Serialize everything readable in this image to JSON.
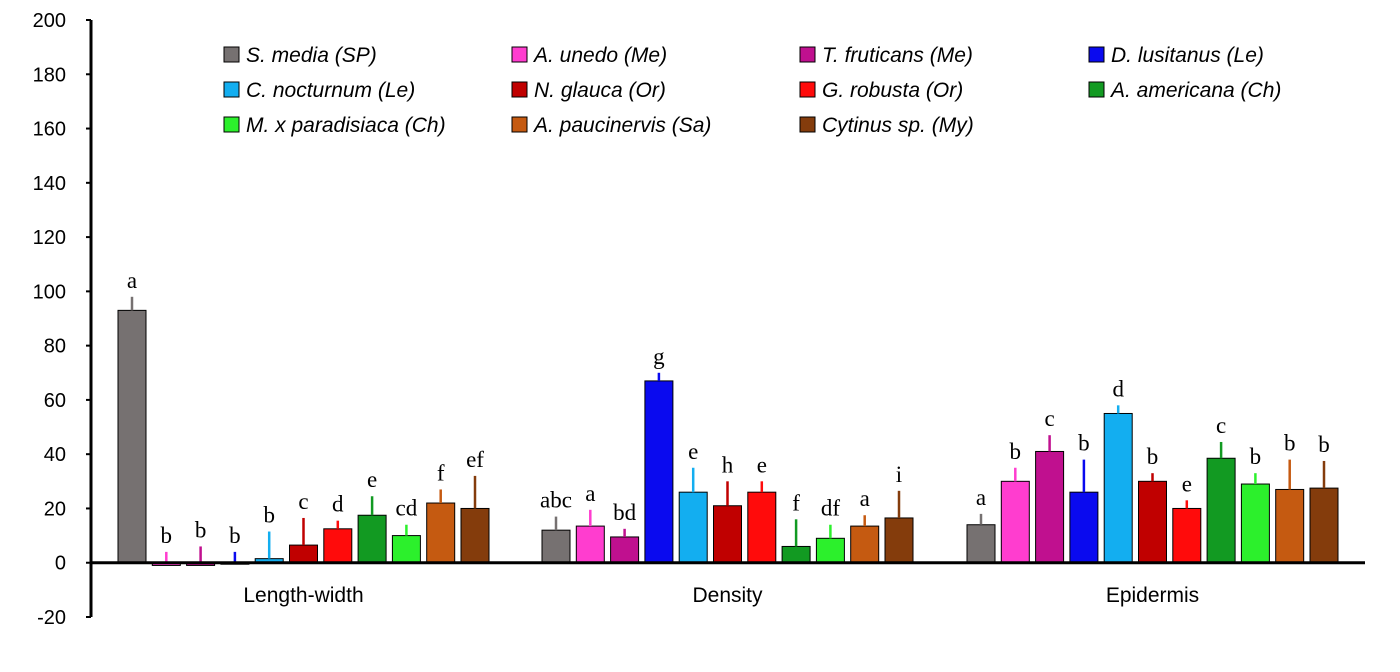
{
  "chart_data": {
    "type": "bar",
    "title": "",
    "xlabel": "",
    "ylabel": "",
    "ylim": [
      -20,
      200
    ],
    "yticks": [
      -20,
      0,
      20,
      40,
      60,
      80,
      100,
      120,
      140,
      160,
      180,
      200
    ],
    "grid": false,
    "legend_position": "top",
    "categories": [
      "Length-width",
      "Density",
      "Epidermis"
    ],
    "series": [
      {
        "name": "S. media (SP)",
        "color": "#767171",
        "values": [
          93,
          12,
          14
        ],
        "errors": [
          5,
          5,
          4
        ],
        "letters": [
          "a",
          "abc",
          "a"
        ]
      },
      {
        "name": "A. unedo (Me)",
        "color": "#ff3dcf",
        "values": [
          -1,
          13.5,
          30
        ],
        "errors": [
          4,
          6,
          5
        ],
        "letters": [
          "b",
          "a",
          "b"
        ]
      },
      {
        "name": "T. fruticans (Me)",
        "color": "#c0108f",
        "values": [
          -1,
          9.5,
          41
        ],
        "errors": [
          6,
          3,
          6
        ],
        "letters": [
          "b",
          "bd",
          "c"
        ]
      },
      {
        "name": "D. lusitanus (Le)",
        "color": "#0a0aef",
        "values": [
          0,
          67,
          26
        ],
        "errors": [
          4,
          3,
          12
        ],
        "letters": [
          "b",
          "g",
          "b"
        ]
      },
      {
        "name": "C. nocturnum (Le)",
        "color": "#13aef0",
        "values": [
          1.5,
          26,
          55
        ],
        "errors": [
          10,
          9,
          3
        ],
        "letters": [
          "b",
          "e",
          "d"
        ]
      },
      {
        "name": "N. glauca (Or)",
        "color": "#c00000",
        "values": [
          6.5,
          21,
          30
        ],
        "errors": [
          10,
          9,
          3
        ],
        "letters": [
          "c",
          "h",
          "b"
        ]
      },
      {
        "name": "G. robusta (Or)",
        "color": "#ff0b0b",
        "values": [
          12.5,
          26,
          20
        ],
        "errors": [
          3,
          4,
          3
        ],
        "letters": [
          "d",
          "e",
          "e"
        ]
      },
      {
        "name": "A. americana (Ch)",
        "color": "#129a22",
        "values": [
          17.5,
          6,
          38.5
        ],
        "errors": [
          7,
          10,
          6
        ],
        "letters": [
          "e",
          "f",
          "c"
        ]
      },
      {
        "name": "M. x paradisiaca (Ch)",
        "color": "#2cf02c",
        "values": [
          10,
          9,
          29
        ],
        "errors": [
          4,
          5,
          4
        ],
        "letters": [
          "cd",
          "df",
          "b"
        ]
      },
      {
        "name": "A. paucinervis (Sa)",
        "color": "#c55a11",
        "values": [
          22,
          13.5,
          27
        ],
        "errors": [
          5,
          4,
          11
        ],
        "letters": [
          "f",
          "a",
          "b"
        ]
      },
      {
        "name": "Cytinus sp. (My)",
        "color": "#843c0c",
        "values": [
          20,
          16.5,
          27.5
        ],
        "errors": [
          12,
          10,
          10
        ],
        "letters": [
          "ef",
          "i",
          "b"
        ]
      }
    ]
  }
}
